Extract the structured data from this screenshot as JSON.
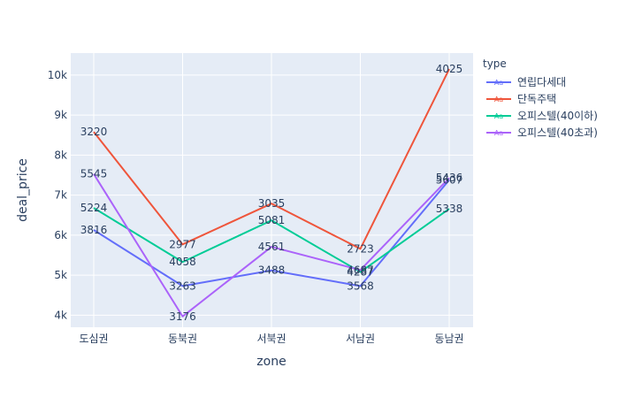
{
  "chart_data": {
    "type": "line",
    "xlabel": "zone",
    "ylabel": "deal_price",
    "categories": [
      "도심권",
      "동북권",
      "서북권",
      "서남권",
      "동남권"
    ],
    "ylim": [
      3700,
      10550
    ],
    "yticks": [
      4000,
      5000,
      6000,
      7000,
      8000,
      9000,
      10000
    ],
    "ytick_labels": [
      "4k",
      "5k",
      "6k",
      "7k",
      "8k",
      "9k",
      "10k"
    ],
    "grid": true,
    "legend": {
      "title": "type",
      "placement": "right",
      "marker_text": "Aa"
    },
    "series": [
      {
        "name": "연립다세대",
        "color": "#636efa",
        "values": [
          6130,
          4730,
          5120,
          4730,
          7380
        ],
        "labels": [
          "3816",
          "3263",
          "3488",
          "3568",
          "5607"
        ]
      },
      {
        "name": "단독주택",
        "color": "#EF553B",
        "values": [
          8580,
          5770,
          6790,
          5660,
          10150
        ],
        "labels": [
          "3220",
          "2977",
          "3035",
          "2723",
          "4025"
        ]
      },
      {
        "name": "오피스텔(40이하)",
        "color": "#00cc96",
        "values": [
          6680,
          5330,
          6370,
          5080,
          6660
        ],
        "labels": [
          "5224",
          "4058",
          "5081",
          "4287",
          "5338"
        ]
      },
      {
        "name": "오피스텔(40초과)",
        "color": "#ab63fa",
        "values": [
          7530,
          3970,
          5710,
          5130,
          7430
        ],
        "labels": [
          "5545",
          "3176",
          "4561",
          "4687",
          "5436"
        ]
      }
    ]
  }
}
